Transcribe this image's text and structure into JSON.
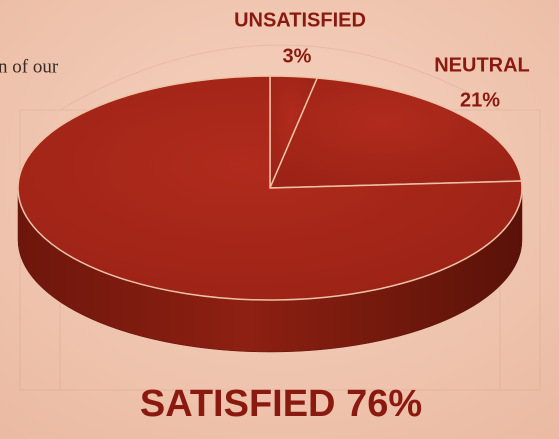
{
  "chart_data": {
    "type": "pie",
    "annotations": [
      "n of our"
    ],
    "categories": [
      "UNSATISFIED",
      "NEUTRAL",
      "SATISFIED"
    ],
    "values": [
      3,
      21,
      76
    ],
    "value_labels": [
      "3%",
      "21%",
      "76%"
    ],
    "color": "#a3251a"
  }
}
